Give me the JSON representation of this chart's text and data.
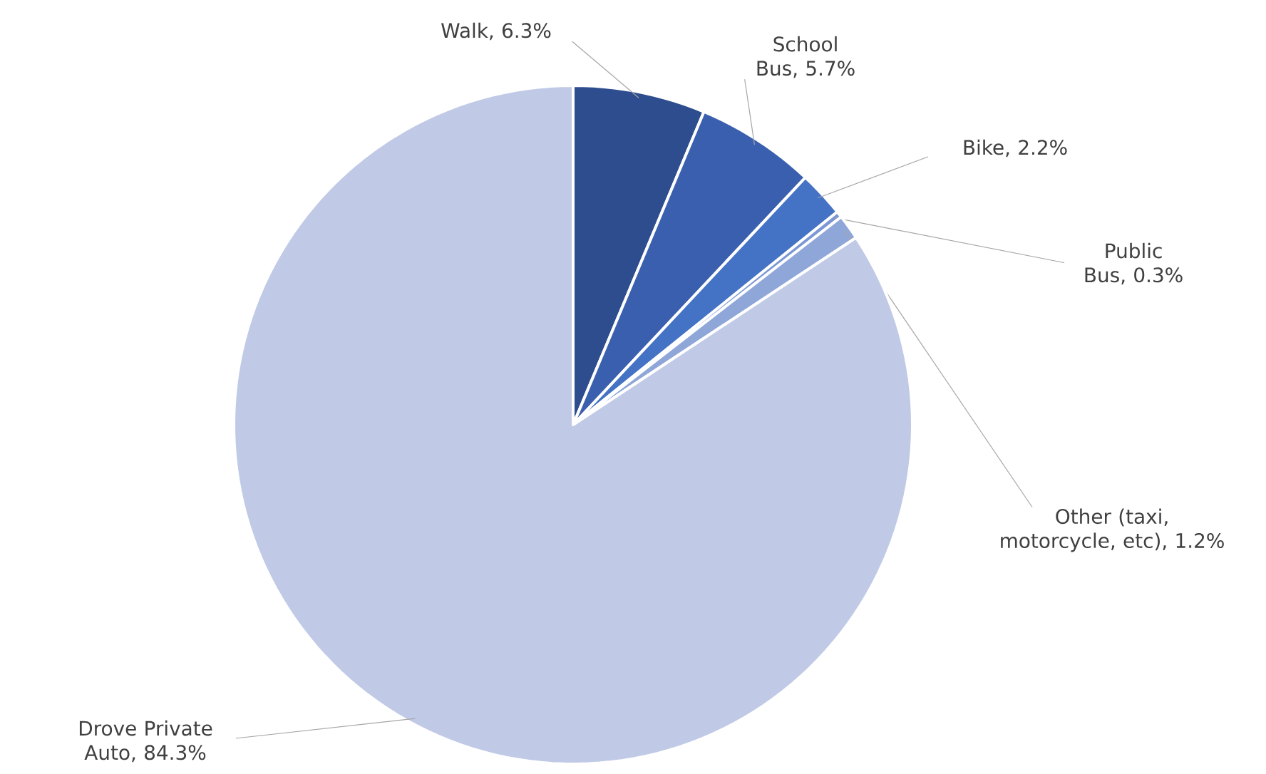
{
  "chart_data": {
    "type": "pie",
    "categories": [
      "Walk",
      "School Bus",
      "Bike",
      "Public Bus",
      "Other (taxi, motorcycle, etc)",
      "Drove Private Auto"
    ],
    "values": [
      6.3,
      5.7,
      2.2,
      0.3,
      1.2,
      84.3
    ],
    "value_labels": [
      ", 6.3%",
      ", 5.7%",
      ", 2.2%",
      ", 0.3%",
      ", 1.2%",
      ", 84.3%"
    ],
    "colors": [
      "#2e4d8f",
      "#3a5fae",
      "#4472c4",
      "#7b97d4",
      "#8fa6d8",
      "#c0cae6"
    ]
  }
}
